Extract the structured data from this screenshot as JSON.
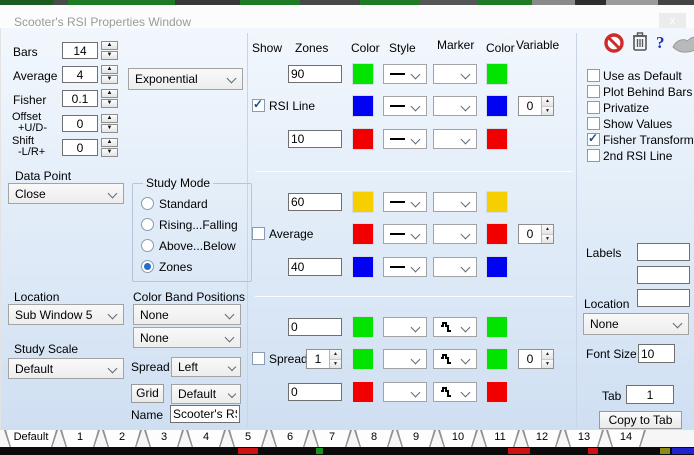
{
  "window": {
    "title": "Scooter's RSI Properties Window",
    "close_label": "x"
  },
  "left": {
    "bars": {
      "label": "Bars",
      "value": "14"
    },
    "average": {
      "label": "Average",
      "value": "4"
    },
    "fisher": {
      "label": "Fisher",
      "value": "0.1"
    },
    "offset": {
      "label": "Offset",
      "label2": "+U/D-",
      "value": "0"
    },
    "shift": {
      "label": "Shift",
      "label2": "-L/R+",
      "value": "0"
    },
    "ma_type": "Exponential",
    "data_point": {
      "label": "Data Point",
      "value": "Close"
    },
    "study_mode": {
      "label": "Study Mode",
      "options": [
        {
          "label": "Standard",
          "selected": false
        },
        {
          "label": "Rising...Falling",
          "selected": false
        },
        {
          "label": "Above...Below",
          "selected": false
        },
        {
          "label": "Zones",
          "selected": true
        }
      ]
    },
    "location": {
      "label": "Location",
      "value": "Sub Window 5"
    },
    "study_scale": {
      "label": "Study Scale",
      "value": "Default"
    },
    "color_band": {
      "label": "Color Band Positions",
      "first": "None",
      "second": "None"
    },
    "spread_row": {
      "label": "Spread",
      "value": "Left"
    },
    "grid_row": {
      "button": "Grid",
      "value": "Default"
    },
    "name_row": {
      "label": "Name",
      "value": "Scooter's RS"
    }
  },
  "middle": {
    "headers": {
      "show": "Show",
      "zones": "Zones",
      "color": "Color",
      "style": "Style",
      "marker": "Marker",
      "color2": "Color",
      "variable": "Variable"
    },
    "groups": [
      {
        "rows": [
          {
            "zone": "90",
            "color": "#00e400",
            "color2": "#00e400"
          },
          {
            "check": "RSI Line",
            "checked": true,
            "color": "#0202f2",
            "color2": "#0202f2",
            "variable": "0"
          },
          {
            "zone": "10",
            "color": "#f20000",
            "color2": "#f20000"
          }
        ]
      },
      {
        "rows": [
          {
            "zone": "60",
            "color": "#f6cf00",
            "color2": "#f6cf00"
          },
          {
            "check": "Average",
            "checked": false,
            "color": "#f20000",
            "color2": "#f20000",
            "variable": "0"
          },
          {
            "zone": "40",
            "color": "#0202f2",
            "color2": "#0202f2"
          }
        ]
      },
      {
        "rows": [
          {
            "zone": "0",
            "color": "#00e400",
            "color2": "#00e400"
          },
          {
            "check": "Spread",
            "checked": false,
            "spinner": "1",
            "color": "#00e400",
            "color2": "#00e400",
            "variable": "0"
          },
          {
            "zone": "0",
            "color": "#f20000",
            "color2": "#f20000"
          }
        ]
      }
    ]
  },
  "right": {
    "help_glyph": "?",
    "checkboxes": [
      {
        "label": "Use as Default",
        "checked": false
      },
      {
        "label": "Plot Behind Bars",
        "checked": false
      },
      {
        "label": "Privatize",
        "checked": false
      },
      {
        "label": "Show Values",
        "checked": false
      },
      {
        "label": "Fisher Transform",
        "checked": true
      },
      {
        "label": "2nd RSI Line",
        "checked": false
      }
    ],
    "labels_caption": "Labels",
    "labels_values": [
      "",
      "",
      ""
    ],
    "location_caption": "Location",
    "location_value": "None",
    "font_size": {
      "label": "Font Size",
      "value": "10"
    },
    "tab": {
      "label": "Tab",
      "value": "1"
    },
    "copy_button": "Copy to Tab"
  },
  "tabs": {
    "selected": "Default",
    "items": [
      "Default",
      "1",
      "2",
      "3",
      "4",
      "5",
      "6",
      "7",
      "8",
      "9",
      "10",
      "11",
      "12",
      "13",
      "14"
    ]
  }
}
